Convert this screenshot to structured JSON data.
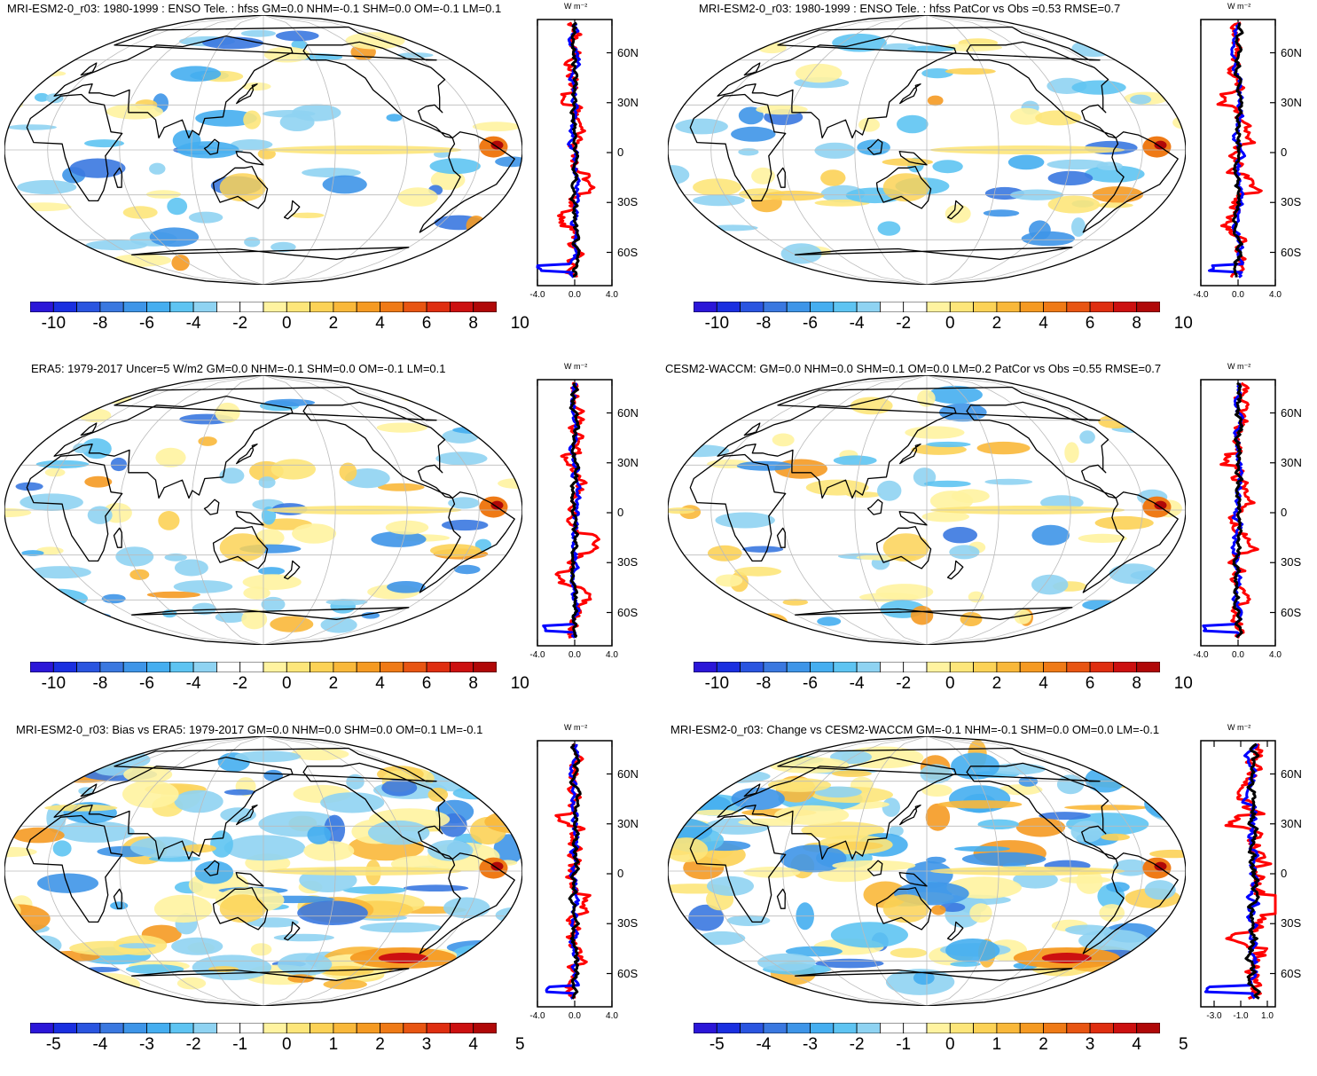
{
  "panels": [
    {
      "id": "p1",
      "title": "MRI-ESM2-0_r03: 1980-1999 : ENSO Tele. : hfss GM=0.0 NHM=-0.1 SHM=0.0 OM=-0.1 LM=0.1",
      "colorbar": {
        "labels": [
          "-10",
          "-8",
          "-6",
          "-4",
          "-2",
          "0",
          "2",
          "4",
          "6",
          "8",
          "10"
        ]
      },
      "profile": {
        "units_label": "W m⁻²",
        "x_ticks": [
          "-4.0",
          "0.0",
          "4.0"
        ],
        "y_ticks": [
          "60N",
          "30N",
          "0",
          "30S",
          "60S"
        ],
        "xlim": [
          -4,
          4
        ]
      }
    },
    {
      "id": "p2",
      "title": "MRI-ESM2-0_r03: 1980-1999 : ENSO Tele. : hfss PatCor vs Obs =0.53 RMSE=0.7",
      "colorbar": {
        "labels": [
          "-10",
          "-8",
          "-6",
          "-4",
          "-2",
          "0",
          "2",
          "4",
          "6",
          "8",
          "10"
        ]
      },
      "profile": {
        "units_label": "W m⁻²",
        "x_ticks": [
          "-4.0",
          "0.0",
          "4.0"
        ],
        "y_ticks": [
          "60N",
          "30N",
          "0",
          "30S",
          "60S"
        ],
        "xlim": [
          -4,
          4
        ]
      }
    },
    {
      "id": "p3",
      "title": "ERA5: 1979-2017 Uncer=5 W/m2 GM=0.0 NHM=-0.1 SHM=0.0 OM=-0.1 LM=0.1",
      "colorbar": {
        "labels": [
          "-10",
          "-8",
          "-6",
          "-4",
          "-2",
          "0",
          "2",
          "4",
          "6",
          "8",
          "10"
        ]
      },
      "profile": {
        "units_label": "W m⁻²",
        "x_ticks": [
          "-4.0",
          "0.0",
          "4.0"
        ],
        "y_ticks": [
          "60N",
          "30N",
          "0",
          "30S",
          "60S"
        ],
        "xlim": [
          -4,
          4
        ]
      }
    },
    {
      "id": "p4",
      "title": "CESM2-WACCM: GM=0.0 NHM=0.0 SHM=0.1 OM=0.0 LM=0.2 PatCor vs Obs =0.55 RMSE=0.7",
      "colorbar": {
        "labels": [
          "-10",
          "-8",
          "-6",
          "-4",
          "-2",
          "0",
          "2",
          "4",
          "6",
          "8",
          "10"
        ]
      },
      "profile": {
        "units_label": "W m⁻²",
        "x_ticks": [
          "-4.0",
          "0.0",
          "4.0"
        ],
        "y_ticks": [
          "60N",
          "30N",
          "0",
          "30S",
          "60S"
        ],
        "xlim": [
          -4,
          4
        ]
      }
    },
    {
      "id": "p5",
      "title": "MRI-ESM2-0_r03: Bias vs ERA5: 1979-2017 GM=0.0 NHM=0.0 SHM=0.0 OM=0.1 LM=-0.1",
      "colorbar": {
        "labels": [
          "-5",
          "-4",
          "-3",
          "-2",
          "-1",
          "0",
          "1",
          "2",
          "3",
          "4",
          "5"
        ]
      },
      "profile": {
        "units_label": "W m⁻²",
        "x_ticks": [
          "-4.0",
          "0.0",
          "4.0"
        ],
        "y_ticks": [
          "60N",
          "30N",
          "0",
          "30S",
          "60S"
        ],
        "xlim": [
          -4,
          4
        ]
      }
    },
    {
      "id": "p6",
      "title": "MRI-ESM2-0_r03: Change vs CESM2-WACCM GM=-0.1 NHM=-0.1 SHM=0.0 OM=0.0 LM=-0.1",
      "colorbar": {
        "labels": [
          "-5",
          "-4",
          "-3",
          "-2",
          "-1",
          "0",
          "1",
          "2",
          "3",
          "4",
          "5"
        ]
      },
      "profile": {
        "units_label": "W m⁻²",
        "x_ticks": [
          "-3.0",
          "-1.0",
          "1.0"
        ],
        "y_ticks": [
          "60N",
          "30N",
          "0",
          "30S",
          "60S"
        ],
        "xlim": [
          -4,
          1.6
        ]
      }
    }
  ],
  "colors": {
    "palette": [
      "#2b16d8",
      "#1a2fe0",
      "#2a55e0",
      "#3a78e0",
      "#3e95e8",
      "#45aef0",
      "#5ec4f2",
      "#8fd3f2",
      "#ffffff",
      "#ffffff",
      "#fff3a0",
      "#fde67a",
      "#fcd256",
      "#f9b83a",
      "#f59a22",
      "#ef7a16",
      "#e85512",
      "#df2e10",
      "#cc1010",
      "#b00808"
    ],
    "profile_red": "#ff0000",
    "profile_blue": "#0000ff",
    "profile_black": "#000000",
    "grid": "#bbbbbb"
  }
}
